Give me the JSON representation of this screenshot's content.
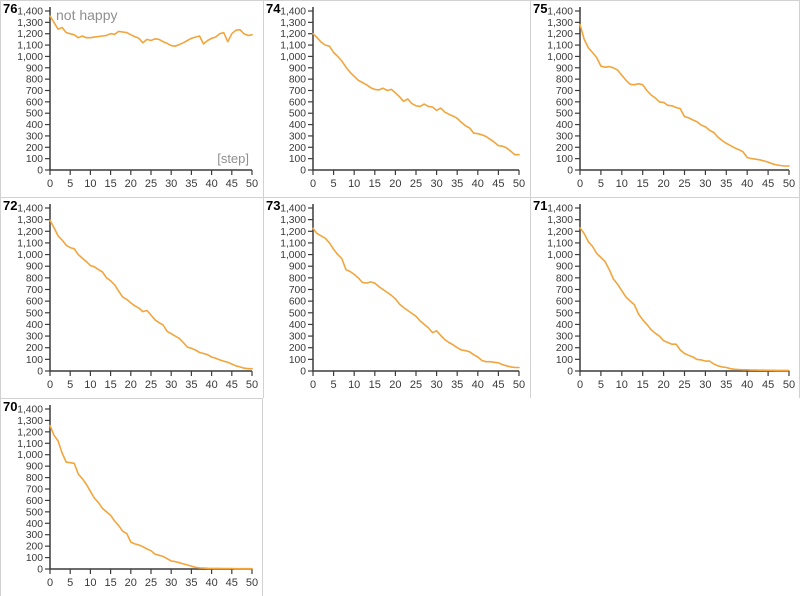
{
  "page": {
    "background": "#ffffff"
  },
  "colors": {
    "line": "#f2a53c",
    "axis": "#3c3c3c",
    "tick_label": "#3a3a3a",
    "run_label": "#000000",
    "annotation": "#8f8f8f",
    "cell_border": "#d2d2d2",
    "background": "#ffffff"
  },
  "axes_defaults": {
    "x_min": 0,
    "x_max": 50,
    "x_tick_step": 5,
    "y_min": 0,
    "y_max": 1400,
    "y_tick_step": 100,
    "y_tick_format": "thousands-comma",
    "grid": false,
    "legend": false
  },
  "chart_data": [
    {
      "type": "line",
      "run_label": "76",
      "row": 0,
      "col": 0,
      "plot_title": "not happy",
      "xlabel": "[step]",
      "x_start": 0,
      "x_end": 50,
      "ylim": [
        0,
        1400
      ],
      "values": [
        1355,
        1300,
        1240,
        1255,
        1210,
        1200,
        1190,
        1165,
        1180,
        1165,
        1165,
        1170,
        1175,
        1180,
        1185,
        1200,
        1195,
        1220,
        1215,
        1210,
        1190,
        1175,
        1160,
        1120,
        1150,
        1140,
        1155,
        1150,
        1130,
        1115,
        1095,
        1090,
        1105,
        1120,
        1140,
        1160,
        1170,
        1180,
        1110,
        1140,
        1160,
        1170,
        1200,
        1210,
        1130,
        1200,
        1230,
        1235,
        1200,
        1185,
        1190
      ]
    },
    {
      "type": "line",
      "run_label": "74",
      "row": 0,
      "col": 1,
      "x_start": 0,
      "x_end": 50,
      "ylim": [
        0,
        1400
      ],
      "values": [
        1200,
        1165,
        1125,
        1100,
        1090,
        1035,
        1000,
        960,
        905,
        860,
        825,
        790,
        770,
        750,
        725,
        710,
        705,
        720,
        700,
        710,
        680,
        645,
        605,
        625,
        585,
        565,
        560,
        580,
        560,
        555,
        525,
        545,
        510,
        490,
        475,
        455,
        420,
        390,
        370,
        325,
        320,
        310,
        295,
        270,
        245,
        215,
        210,
        195,
        165,
        135,
        135
      ]
    },
    {
      "type": "line",
      "run_label": "75",
      "row": 0,
      "col": 2,
      "x_start": 0,
      "x_end": 50,
      "ylim": [
        0,
        1400
      ],
      "values": [
        1280,
        1150,
        1075,
        1035,
        990,
        915,
        905,
        910,
        900,
        880,
        835,
        790,
        755,
        750,
        760,
        750,
        700,
        660,
        635,
        600,
        595,
        570,
        565,
        550,
        540,
        470,
        460,
        440,
        425,
        395,
        380,
        350,
        330,
        290,
        260,
        235,
        215,
        195,
        180,
        160,
        110,
        100,
        95,
        90,
        80,
        70,
        55,
        45,
        40,
        35,
        35
      ]
    },
    {
      "type": "line",
      "run_label": "72",
      "row": 1,
      "col": 0,
      "x_start": 0,
      "x_end": 50,
      "ylim": [
        0,
        1400
      ],
      "values": [
        1295,
        1230,
        1160,
        1125,
        1080,
        1060,
        1050,
        1000,
        970,
        940,
        905,
        895,
        870,
        850,
        800,
        775,
        740,
        685,
        635,
        615,
        585,
        560,
        540,
        510,
        520,
        480,
        440,
        415,
        395,
        340,
        320,
        300,
        280,
        245,
        205,
        195,
        180,
        160,
        150,
        140,
        120,
        110,
        95,
        85,
        75,
        60,
        45,
        35,
        25,
        20,
        20
      ]
    },
    {
      "type": "line",
      "run_label": "73",
      "row": 1,
      "col": 1,
      "x_start": 0,
      "x_end": 50,
      "ylim": [
        0,
        1400
      ],
      "values": [
        1225,
        1180,
        1160,
        1140,
        1100,
        1045,
        1000,
        965,
        870,
        855,
        830,
        800,
        760,
        755,
        765,
        755,
        725,
        700,
        675,
        650,
        620,
        575,
        545,
        520,
        495,
        470,
        430,
        400,
        370,
        330,
        345,
        305,
        270,
        245,
        225,
        200,
        180,
        175,
        165,
        140,
        120,
        90,
        80,
        80,
        75,
        70,
        55,
        45,
        35,
        30,
        30
      ]
    },
    {
      "type": "line",
      "run_label": "71",
      "row": 1,
      "col": 2,
      "x_start": 0,
      "x_end": 50,
      "ylim": [
        0,
        1400
      ],
      "values": [
        1230,
        1180,
        1110,
        1070,
        1010,
        975,
        940,
        870,
        790,
        745,
        690,
        635,
        600,
        570,
        490,
        440,
        400,
        355,
        325,
        300,
        260,
        245,
        230,
        230,
        180,
        150,
        135,
        120,
        100,
        95,
        85,
        85,
        60,
        45,
        35,
        30,
        20,
        15,
        12,
        10,
        10,
        8,
        8,
        7,
        7,
        6,
        6,
        5,
        5,
        5,
        5
      ]
    },
    {
      "type": "line",
      "run_label": "70",
      "row": 2,
      "col": 0,
      "x_start": 0,
      "x_end": 50,
      "ylim": [
        0,
        1400
      ],
      "values": [
        1255,
        1170,
        1120,
        1015,
        935,
        930,
        925,
        830,
        790,
        740,
        680,
        620,
        580,
        530,
        500,
        470,
        420,
        380,
        330,
        310,
        235,
        220,
        210,
        195,
        175,
        160,
        130,
        120,
        110,
        90,
        70,
        65,
        55,
        45,
        35,
        25,
        15,
        10,
        8,
        6,
        5,
        5,
        5,
        4,
        4,
        4,
        3,
        3,
        3,
        3,
        3
      ]
    }
  ]
}
